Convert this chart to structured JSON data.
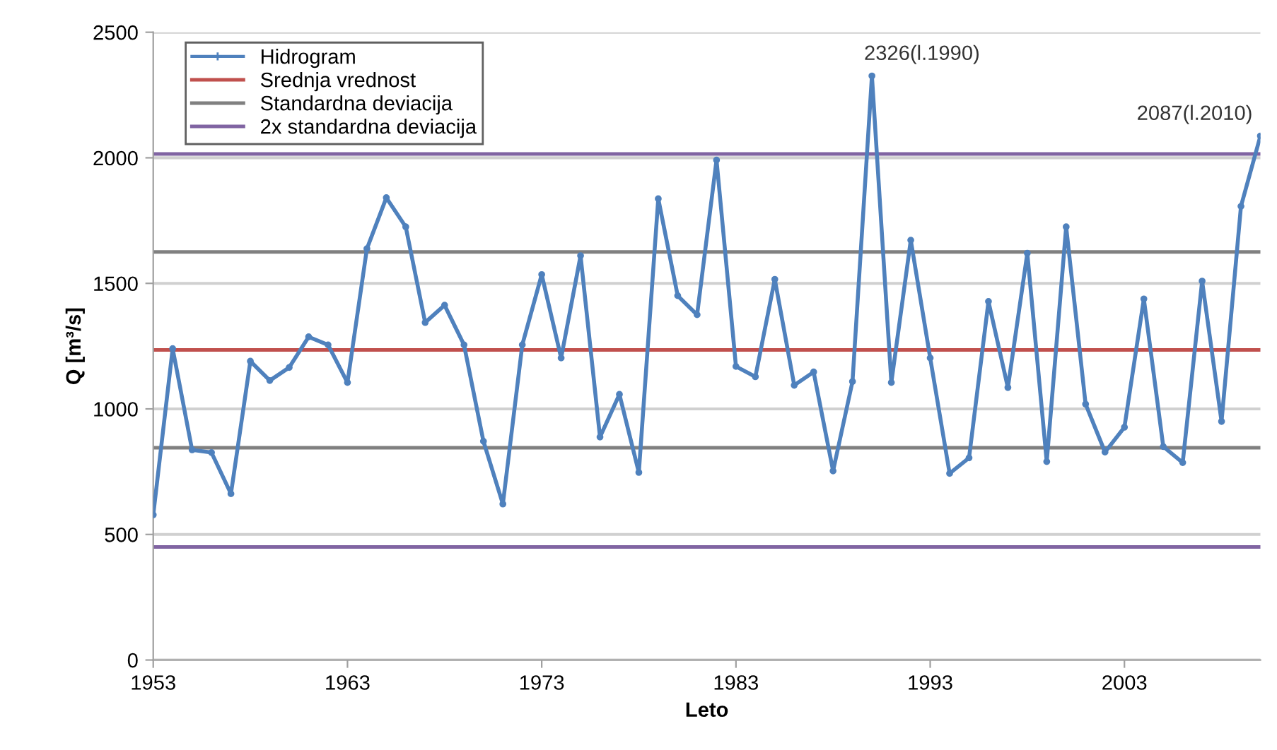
{
  "chart_data": {
    "type": "line",
    "xlabel": "Leto",
    "ylabel": "Q [m³/s]",
    "x": [
      1953,
      1954,
      1955,
      1956,
      1957,
      1958,
      1959,
      1960,
      1961,
      1962,
      1963,
      1964,
      1965,
      1966,
      1967,
      1968,
      1969,
      1970,
      1971,
      1972,
      1973,
      1974,
      1975,
      1976,
      1977,
      1978,
      1979,
      1980,
      1981,
      1982,
      1983,
      1984,
      1985,
      1986,
      1987,
      1988,
      1989,
      1990,
      1991,
      1992,
      1993,
      1994,
      1995,
      1996,
      1997,
      1998,
      1999,
      2000,
      2001,
      2002,
      2003,
      2004,
      2005,
      2006,
      2007,
      2008,
      2009,
      2010
    ],
    "series": [
      {
        "name": "Hidrogram",
        "color": "#4f81bd",
        "values": [
          578,
          1240,
          837,
          826,
          662,
          1190,
          1113,
          1165,
          1287,
          1255,
          1105,
          1638,
          1841,
          1725,
          1344,
          1413,
          1255,
          871,
          621,
          1255,
          1535,
          1203,
          1610,
          888,
          1058,
          747,
          1837,
          1451,
          1375,
          1991,
          1169,
          1128,
          1516,
          1094,
          1147,
          753,
          1109,
          2326,
          1105,
          1672,
          1203,
          743,
          805,
          1428,
          1085,
          1620,
          790,
          1725,
          1019,
          828,
          927,
          1438,
          850,
          786,
          1509,
          950,
          1807,
          2087
        ]
      }
    ],
    "ref_lines": [
      {
        "axis": "y",
        "value": 1235,
        "label": "Srednja vrednost",
        "color": "#c0504d"
      },
      {
        "axis": "y",
        "value": 1625,
        "label": "Standardna deviacija",
        "color": "#808080"
      },
      {
        "axis": "y",
        "value": 845,
        "color": "#808080"
      },
      {
        "axis": "y",
        "value": 2015,
        "label": "2x standardna deviacija",
        "color": "#8064a2"
      },
      {
        "axis": "y",
        "value": 450,
        "color": "#8064a2"
      }
    ],
    "annotations": [
      {
        "text": "2326(l.1990)",
        "x": 1990,
        "y": 2326
      },
      {
        "text": "2087(l.2010)",
        "x": 2010,
        "y": 2087
      }
    ],
    "xlim": [
      1953,
      2010
    ],
    "xticks": [
      1953,
      1963,
      1973,
      1983,
      1993,
      2003
    ],
    "ylim": [
      0,
      2500
    ],
    "yticks": [
      0,
      500,
      1000,
      1500,
      2000,
      2500
    ],
    "grid": "y",
    "legend": "top left",
    "marker": "circle",
    "line_style": "solid"
  }
}
